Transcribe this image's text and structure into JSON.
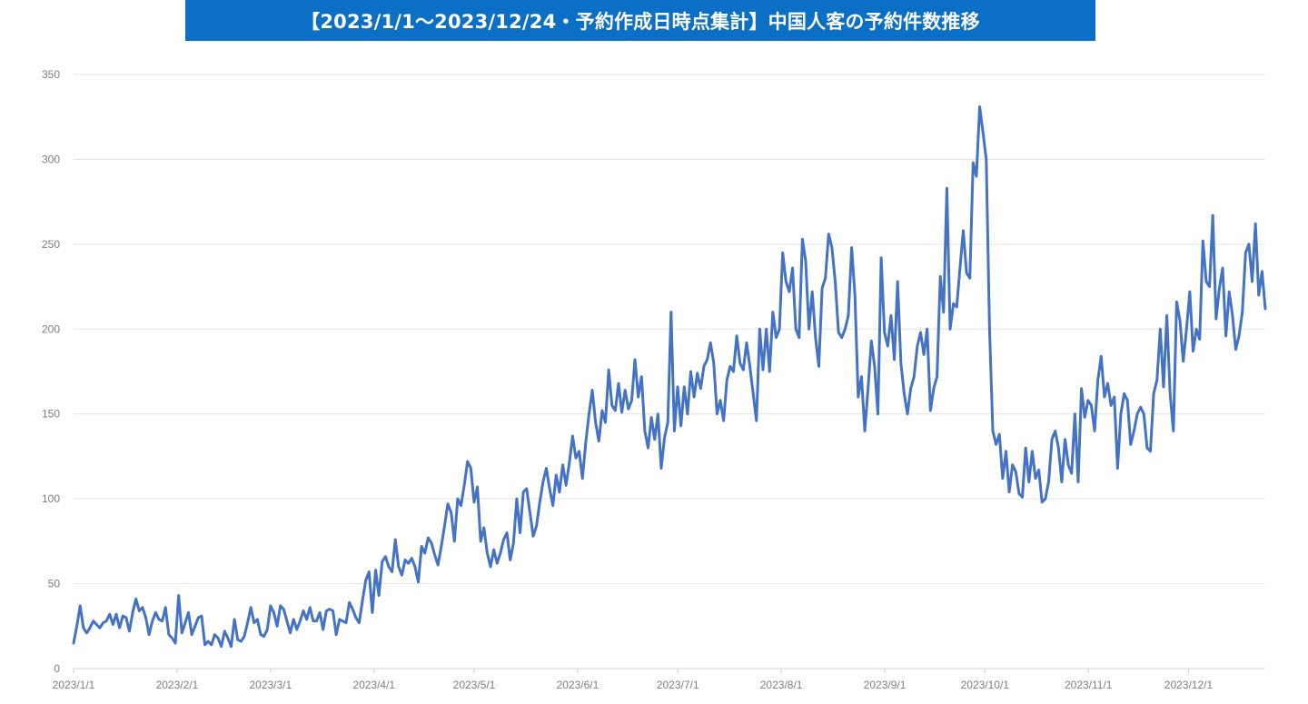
{
  "chart_data": {
    "type": "line",
    "title": "【2023/1/1～2023/12/24・予約作成日時点集計】中国人客の予約件数推移",
    "xlabel": "",
    "ylabel": "",
    "ylim": [
      0,
      350
    ],
    "yticks": [
      0,
      50,
      100,
      150,
      200,
      250,
      300,
      350
    ],
    "grid": true,
    "legend": "none",
    "line_color": "#4472c4",
    "x_start": "2023-01-01",
    "x_end": "2023-12-24",
    "xtick_labels": [
      "2023/1/1",
      "2023/2/1",
      "2023/3/1",
      "2023/4/1",
      "2023/5/1",
      "2023/6/1",
      "2023/7/1",
      "2023/8/1",
      "2023/9/1",
      "2023/10/1",
      "2023/11/1",
      "2023/12/1"
    ],
    "series": [
      {
        "values": [
          15,
          25,
          37,
          24,
          21,
          24,
          28,
          26,
          24,
          27,
          28,
          32,
          26,
          32,
          24,
          31,
          30,
          22,
          33,
          41,
          34,
          36,
          30,
          20,
          28,
          33,
          29,
          28,
          36,
          20,
          18,
          15,
          43,
          21,
          27,
          33,
          20,
          25,
          30,
          31,
          14,
          16,
          14,
          20,
          18,
          13,
          22,
          18,
          13,
          29,
          17,
          16,
          19,
          27,
          36,
          27,
          29,
          20,
          19,
          23,
          37,
          33,
          25,
          37,
          35,
          28,
          21,
          29,
          23,
          28,
          34,
          29,
          36,
          28,
          28,
          33,
          23,
          34,
          35,
          34,
          20,
          29,
          28,
          27,
          39,
          35,
          30,
          27,
          40,
          52,
          57,
          33,
          58,
          43,
          63,
          66,
          60,
          57,
          76,
          60,
          55,
          64,
          62,
          65,
          60,
          51,
          72,
          68,
          77,
          74,
          67,
          61,
          72,
          84,
          97,
          92,
          75,
          100,
          96,
          108,
          122,
          118,
          98,
          107,
          75,
          83,
          68,
          60,
          70,
          62,
          68,
          76,
          80,
          64,
          74,
          100,
          80,
          104,
          106,
          92,
          78,
          84,
          98,
          110,
          118,
          106,
          96,
          114,
          104,
          120,
          108,
          121,
          137,
          124,
          128,
          112,
          133,
          150,
          164,
          145,
          134,
          152,
          145,
          176,
          155,
          152,
          168,
          151,
          164,
          153,
          158,
          182,
          160,
          172,
          140,
          130,
          148,
          135,
          150,
          118,
          136,
          145,
          210,
          140,
          166,
          143,
          166,
          150,
          175,
          160,
          174,
          165,
          178,
          182,
          192,
          180,
          150,
          158,
          146,
          170,
          178,
          175,
          196,
          180,
          176,
          192,
          178,
          162,
          146,
          200,
          176,
          200,
          175,
          210,
          195,
          200,
          245,
          228,
          222,
          236,
          200,
          195,
          253,
          240,
          200,
          222,
          195,
          178,
          224,
          230,
          256,
          248,
          228,
          198,
          195,
          200,
          208,
          248,
          220,
          160,
          172,
          140,
          165,
          193,
          178,
          150,
          242,
          198,
          190,
          208,
          182,
          228,
          180,
          162,
          150,
          165,
          172,
          190,
          198,
          185,
          200,
          152,
          165,
          172,
          231,
          210,
          283,
          200,
          215,
          213,
          236,
          258,
          233,
          230,
          298,
          290,
          331,
          316,
          300,
          200,
          140,
          132,
          138,
          112,
          128,
          104,
          120,
          116,
          103,
          101,
          130,
          110,
          128,
          112,
          117,
          98,
          100,
          110,
          135,
          140,
          130,
          110,
          135,
          120,
          115,
          150,
          110,
          165,
          148,
          158,
          155,
          140,
          170,
          184,
          160,
          168,
          155,
          160,
          118,
          150,
          162,
          158,
          132,
          140,
          150,
          154,
          150,
          130,
          128,
          162,
          170,
          200,
          166,
          208,
          162,
          140,
          216,
          205,
          181,
          200,
          222,
          187,
          200,
          194,
          252,
          228,
          225,
          267,
          206,
          224,
          236,
          196,
          222,
          208,
          188,
          196,
          210,
          245,
          250,
          228,
          262,
          220,
          234,
          212
        ]
      }
    ]
  }
}
